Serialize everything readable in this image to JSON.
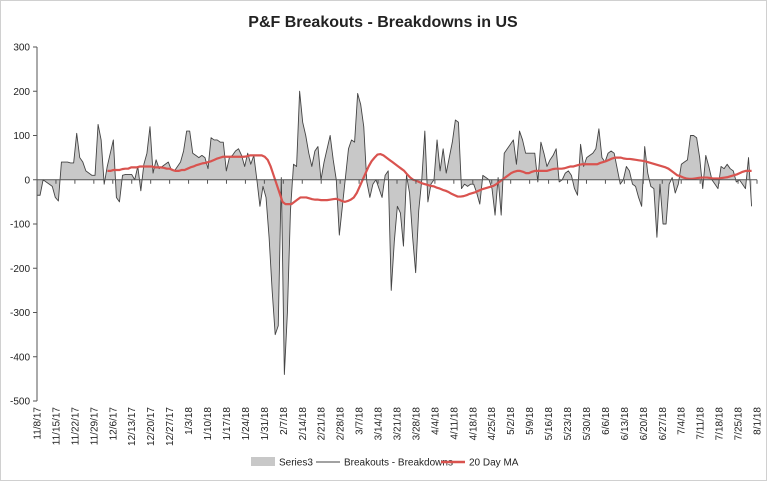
{
  "chart_data": {
    "type": "line",
    "title": "P&F Breakouts - Breakdowns in US",
    "xlabel": "",
    "ylabel": "",
    "ylim": [
      -500,
      300
    ],
    "yticks": [
      -500,
      -400,
      -300,
      -200,
      -100,
      0,
      100,
      200,
      300
    ],
    "x_tick_labels": [
      "11/8/17",
      "11/15/17",
      "11/22/17",
      "11/29/17",
      "12/6/17",
      "12/13/17",
      "12/20/17",
      "12/27/17",
      "1/3/18",
      "1/10/18",
      "1/17/18",
      "1/24/18",
      "1/31/18",
      "2/7/18",
      "2/14/18",
      "2/21/18",
      "2/28/18",
      "3/7/18",
      "3/14/18",
      "3/21/18",
      "3/28/18",
      "4/4/18",
      "4/11/18",
      "4/18/18",
      "4/25/18",
      "5/2/18",
      "5/9/18",
      "5/16/18",
      "5/23/18",
      "5/30/18",
      "6/6/18",
      "6/13/18",
      "6/20/18",
      "6/27/18",
      "7/4/18",
      "7/11/18",
      "7/18/18",
      "7/25/18",
      "8/1/18"
    ],
    "grid": false,
    "legend_position": "bottom",
    "series": [
      {
        "name": "Series3",
        "kind": "area",
        "color": "#c8c8c8",
        "values": [
          -35,
          -35,
          0,
          -5,
          -10,
          -15,
          -40,
          -48,
          40,
          40,
          40,
          38,
          38,
          105,
          50,
          40,
          20,
          15,
          10,
          10,
          125,
          90,
          -10,
          30,
          60,
          90,
          -40,
          -50,
          10,
          12,
          12,
          12,
          0,
          30,
          -25,
          35,
          60,
          120,
          15,
          45,
          25,
          30,
          35,
          40,
          22,
          20,
          30,
          40,
          65,
          110,
          110,
          60,
          55,
          50,
          55,
          50,
          25,
          95,
          90,
          90,
          85,
          85,
          20,
          50,
          55,
          65,
          70,
          55,
          30,
          60,
          35,
          55,
          0,
          -60,
          -15,
          -40,
          -130,
          -250,
          -350,
          -330,
          5,
          -440,
          -300,
          -70,
          35,
          30,
          200,
          130,
          100,
          60,
          30,
          65,
          75,
          0,
          40,
          70,
          100,
          45,
          0,
          -125,
          -60,
          5,
          70,
          90,
          85,
          195,
          170,
          120,
          -5,
          -40,
          -10,
          0,
          -20,
          -40,
          10,
          20,
          -250,
          -140,
          -60,
          -75,
          -150,
          10,
          -30,
          -130,
          -210,
          -70,
          0,
          110,
          -50,
          -10,
          0,
          90,
          20,
          70,
          15,
          50,
          85,
          135,
          130,
          -20,
          -10,
          -15,
          -10,
          -10,
          -30,
          -55,
          10,
          5,
          0,
          -20,
          -80,
          5,
          -80,
          60,
          70,
          80,
          90,
          35,
          110,
          90,
          60,
          60,
          60,
          60,
          -5,
          85,
          60,
          30,
          45,
          55,
          70,
          -5,
          0,
          15,
          20,
          10,
          -20,
          -35,
          80,
          30,
          50,
          55,
          60,
          70,
          115,
          50,
          40,
          60,
          65,
          60,
          25,
          -10,
          0,
          30,
          20,
          -10,
          -15,
          -40,
          -60,
          75,
          15,
          -15,
          -20,
          -130,
          -10,
          -100,
          -100,
          -10,
          5,
          -30,
          -10,
          35,
          40,
          45,
          100,
          100,
          95,
          50,
          -20,
          55,
          30,
          0,
          -10,
          -20,
          30,
          25,
          35,
          25,
          20,
          -5,
          0,
          -10,
          -20,
          50,
          -60
        ],
        "x_start": "11/8/17",
        "x_end": "7/30/18"
      },
      {
        "name": "Breakouts - Breakdowns",
        "kind": "line",
        "color": "#444444",
        "values": [
          -35,
          -35,
          0,
          -5,
          -10,
          -15,
          -40,
          -48,
          40,
          40,
          40,
          38,
          38,
          105,
          50,
          40,
          20,
          15,
          10,
          10,
          125,
          90,
          -10,
          30,
          60,
          90,
          -40,
          -50,
          10,
          12,
          12,
          12,
          0,
          30,
          -25,
          35,
          60,
          120,
          15,
          45,
          25,
          30,
          35,
          40,
          22,
          20,
          30,
          40,
          65,
          110,
          110,
          60,
          55,
          50,
          55,
          50,
          25,
          95,
          90,
          90,
          85,
          85,
          20,
          50,
          55,
          65,
          70,
          55,
          30,
          60,
          35,
          55,
          0,
          -60,
          -15,
          -40,
          -130,
          -250,
          -350,
          -330,
          5,
          -440,
          -300,
          -70,
          35,
          30,
          200,
          130,
          100,
          60,
          30,
          65,
          75,
          0,
          40,
          70,
          100,
          45,
          0,
          -125,
          -60,
          5,
          70,
          90,
          85,
          195,
          170,
          120,
          -5,
          -40,
          -10,
          0,
          -20,
          -40,
          10,
          20,
          -250,
          -140,
          -60,
          -75,
          -150,
          10,
          -30,
          -130,
          -210,
          -70,
          0,
          110,
          -50,
          -10,
          0,
          90,
          20,
          70,
          15,
          50,
          85,
          135,
          130,
          -20,
          -10,
          -15,
          -10,
          -10,
          -30,
          -55,
          10,
          5,
          0,
          -20,
          -80,
          5,
          -80,
          60,
          70,
          80,
          90,
          35,
          110,
          90,
          60,
          60,
          60,
          60,
          -5,
          85,
          60,
          30,
          45,
          55,
          70,
          -5,
          0,
          15,
          20,
          10,
          -20,
          -35,
          80,
          30,
          50,
          55,
          60,
          70,
          115,
          50,
          40,
          60,
          65,
          60,
          25,
          -10,
          0,
          30,
          20,
          -10,
          -15,
          -40,
          -60,
          75,
          15,
          -15,
          -20,
          -130,
          -10,
          -100,
          -100,
          -10,
          5,
          -30,
          -10,
          35,
          40,
          45,
          100,
          100,
          95,
          50,
          -20,
          55,
          30,
          0,
          -10,
          -20,
          30,
          25,
          35,
          25,
          20,
          -5,
          0,
          -10,
          -20,
          50,
          -60
        ],
        "x_start": "11/8/17",
        "x_end": "7/30/18"
      },
      {
        "name": "20 Day MA",
        "kind": "line",
        "color": "#d9534f",
        "x_start": "12/4/17",
        "x_end": "7/30/18",
        "values": [
          20,
          20,
          22,
          22,
          22,
          24,
          25,
          25,
          28,
          28,
          28,
          30,
          30,
          30,
          30,
          30,
          28,
          28,
          28,
          27,
          25,
          25,
          22,
          20,
          20,
          22,
          22,
          25,
          28,
          30,
          33,
          35,
          37,
          38,
          40,
          42,
          45,
          48,
          50,
          52,
          52,
          52,
          52,
          52,
          52,
          52,
          52,
          53,
          55,
          55,
          55,
          55,
          55,
          52,
          45,
          30,
          10,
          -10,
          -30,
          -50,
          -55,
          -55,
          -55,
          -50,
          -45,
          -40,
          -40,
          -40,
          -42,
          -44,
          -45,
          -45,
          -46,
          -46,
          -46,
          -45,
          -44,
          -43,
          -45,
          -48,
          -50,
          -48,
          -45,
          -40,
          -30,
          -15,
          0,
          15,
          30,
          42,
          50,
          57,
          58,
          55,
          50,
          45,
          40,
          35,
          30,
          25,
          20,
          12,
          5,
          0,
          -2,
          -5,
          -8,
          -10,
          -12,
          -14,
          -15,
          -18,
          -20,
          -23,
          -25,
          -28,
          -32,
          -35,
          -38,
          -38,
          -37,
          -35,
          -32,
          -30,
          -28,
          -25,
          -22,
          -20,
          -18,
          -16,
          -14,
          -10,
          -5,
          0,
          5,
          10,
          15,
          18,
          20,
          20,
          18,
          15,
          15,
          18,
          20,
          20,
          20,
          20,
          20,
          22,
          24,
          25,
          25,
          25,
          26,
          28,
          30,
          30,
          32,
          34,
          35,
          35,
          35,
          35,
          35,
          35,
          38,
          40,
          42,
          45,
          48,
          50,
          50,
          50,
          48,
          47,
          47,
          46,
          45,
          44,
          43,
          42,
          40,
          38,
          36,
          34,
          32,
          30,
          28,
          25,
          20,
          15,
          10,
          8,
          5,
          3,
          2,
          2,
          3,
          4,
          5,
          5,
          5,
          4,
          3,
          3,
          3,
          4,
          5,
          6,
          8,
          10,
          12,
          15,
          18,
          20,
          20,
          20
        ]
      }
    ]
  }
}
